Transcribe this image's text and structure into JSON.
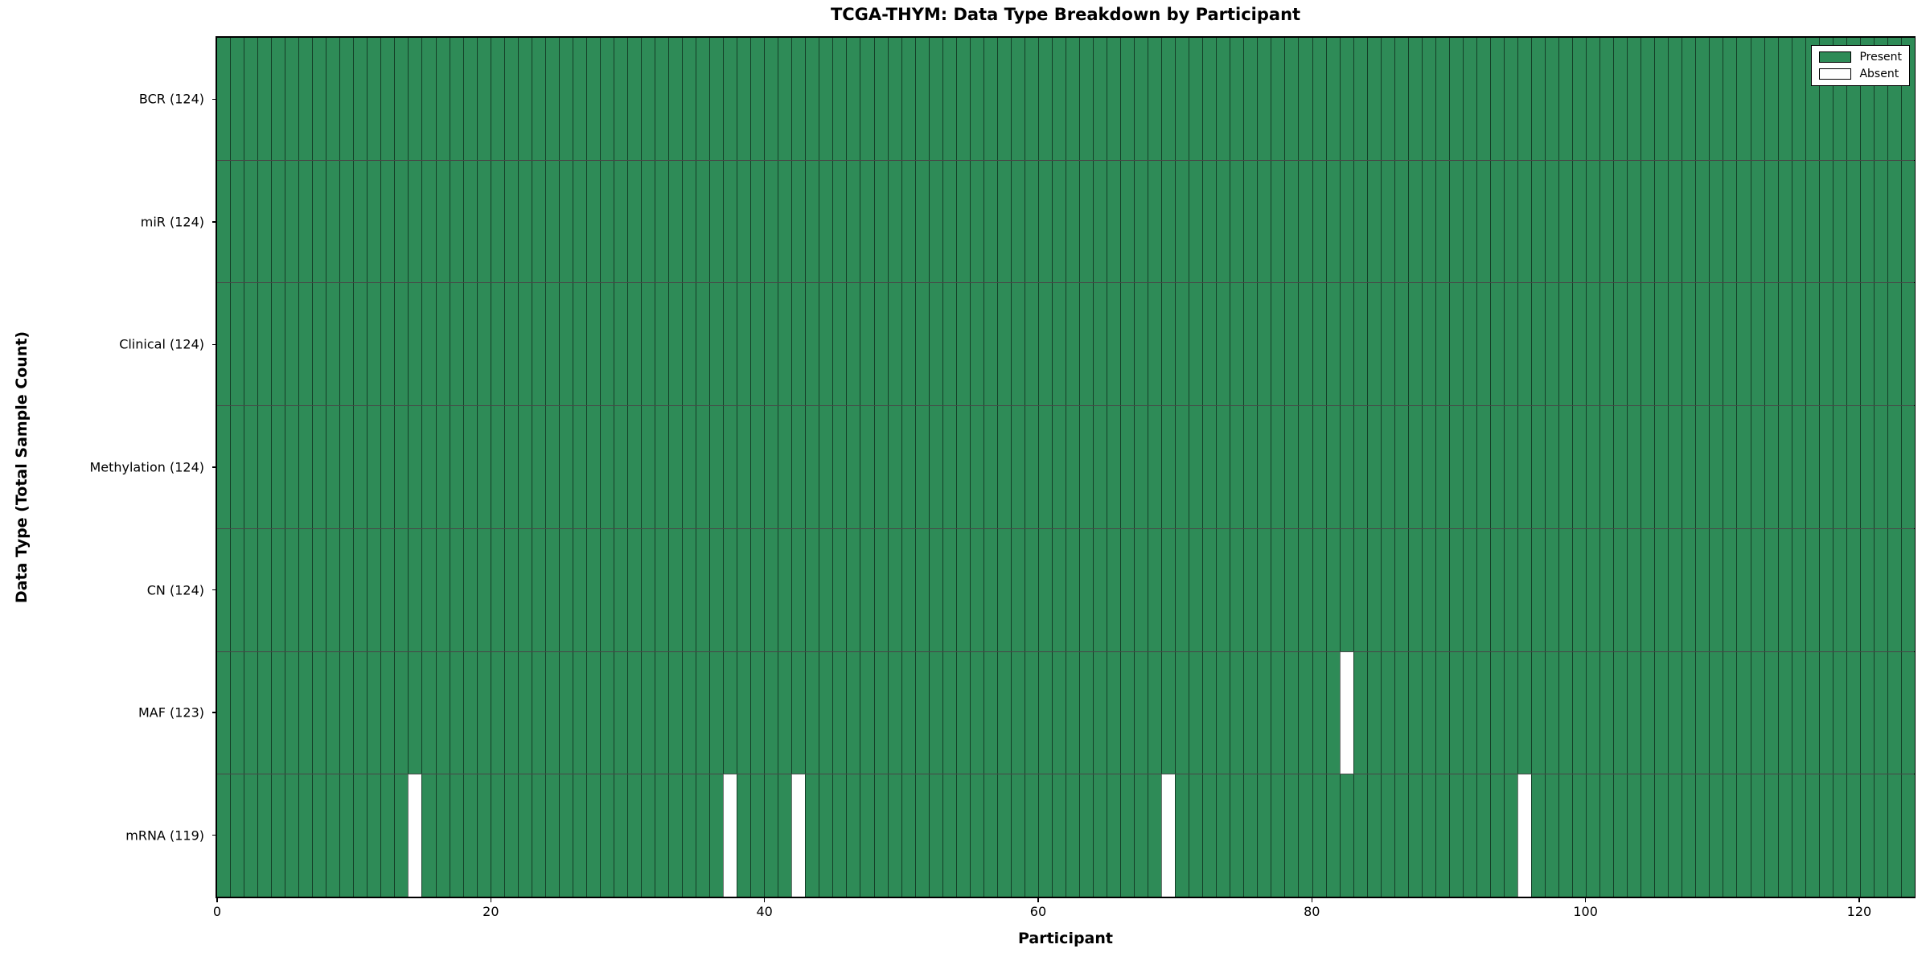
{
  "chart_data": {
    "type": "heatmap",
    "title": "TCGA-THYM: Data Type Breakdown by Participant",
    "xlabel": "Participant",
    "ylabel": "Data Type (Total Sample Count)",
    "n_participants": 124,
    "xlim": [
      0,
      124
    ],
    "x_ticks": [
      0,
      20,
      40,
      60,
      80,
      100,
      120
    ],
    "grid": false,
    "legend_position": "upper right",
    "rows": [
      {
        "data_type": "BCR",
        "label": "BCR (124)",
        "total_samples": 124,
        "absent_participants": []
      },
      {
        "data_type": "miR",
        "label": "miR (124)",
        "total_samples": 124,
        "absent_participants": []
      },
      {
        "data_type": "Clinical",
        "label": "Clinical (124)",
        "total_samples": 124,
        "absent_participants": []
      },
      {
        "data_type": "Methylation",
        "label": "Methylation (124)",
        "total_samples": 124,
        "absent_participants": []
      },
      {
        "data_type": "CN",
        "label": "CN (124)",
        "total_samples": 124,
        "absent_participants": []
      },
      {
        "data_type": "MAF",
        "label": "MAF (123)",
        "total_samples": 123,
        "absent_participants": [
          82
        ]
      },
      {
        "data_type": "mRNA",
        "label": "mRNA (119)",
        "total_samples": 119,
        "absent_participants": [
          14,
          37,
          42,
          69,
          95
        ]
      }
    ],
    "legend": [
      {
        "label": "Present",
        "color": "#2e8b57"
      },
      {
        "label": "Absent",
        "color": "#ffffff"
      }
    ],
    "colors": {
      "present": "#2e8b57",
      "absent": "#ffffff",
      "edge": "#000000",
      "background": "#ffffff"
    }
  }
}
